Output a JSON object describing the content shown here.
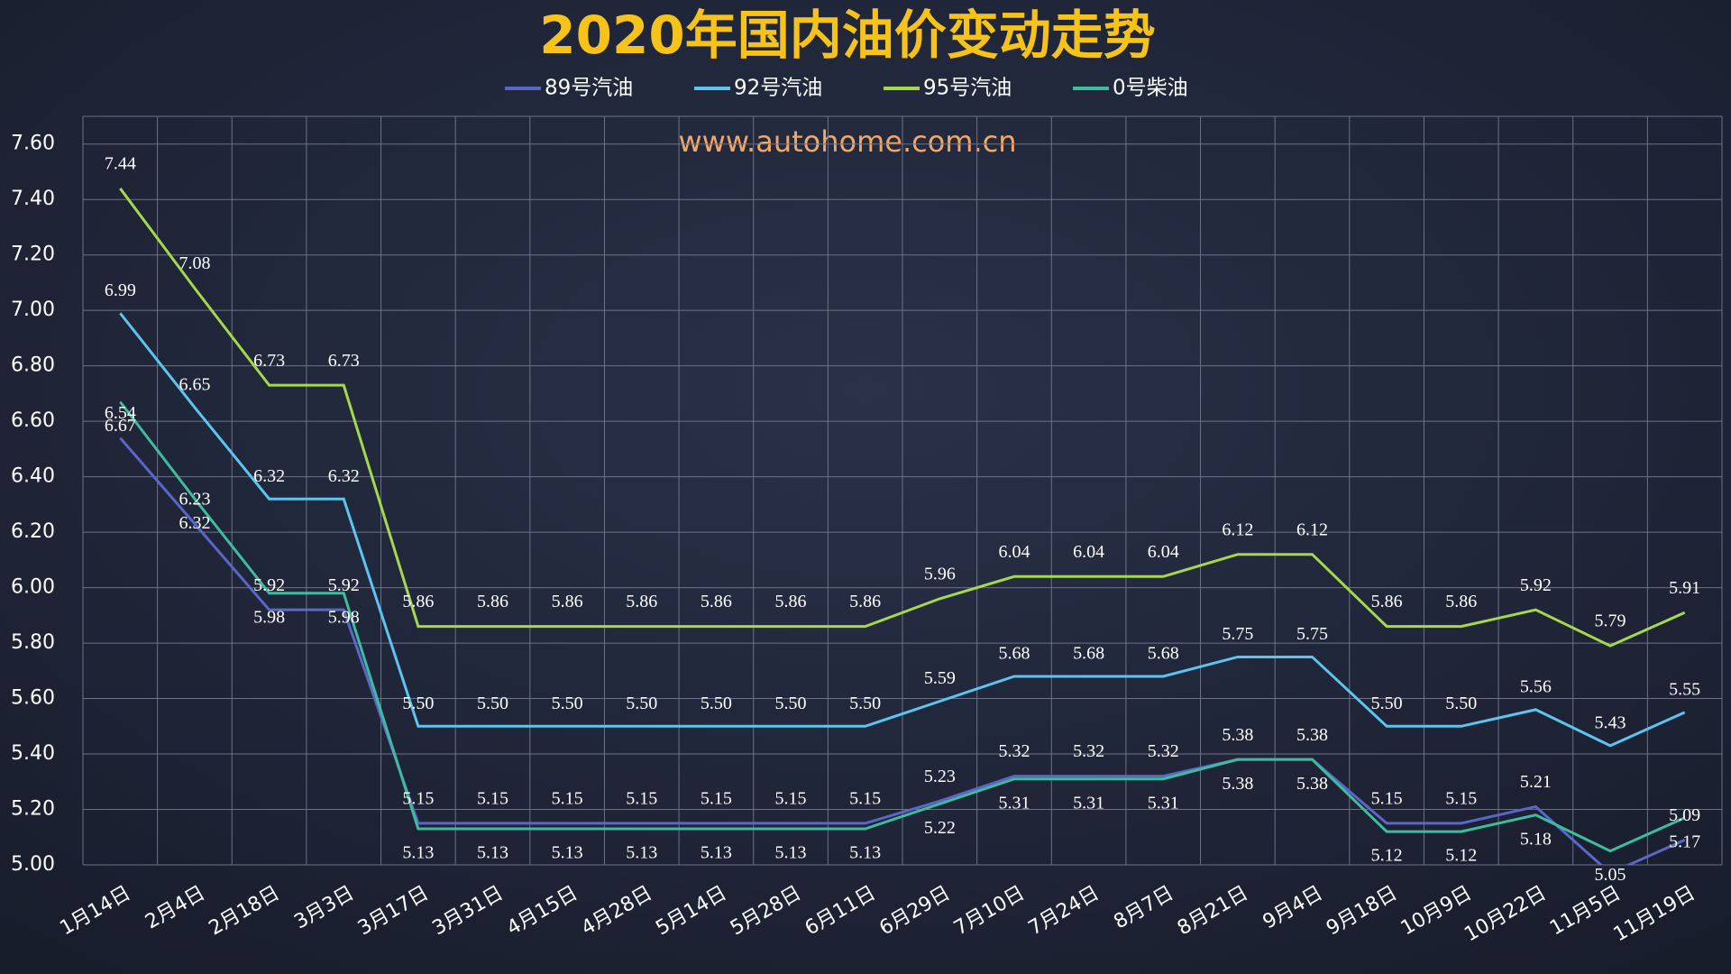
{
  "chart_data": {
    "type": "line",
    "title": "2020年国内油价变动走势",
    "watermark": "www.autohome.com.cn",
    "categories": [
      "1月14日",
      "2月4日",
      "2月18日",
      "3月3日",
      "3月17日",
      "3月31日",
      "4月15日",
      "4月28日",
      "5月14日",
      "5月28日",
      "6月11日",
      "6月29日",
      "7月10日",
      "7月24日",
      "8月7日",
      "8月21日",
      "9月4日",
      "9月18日",
      "10月9日",
      "10月22日",
      "11月5日",
      "11月19日"
    ],
    "ylim": [
      5.0,
      7.7
    ],
    "yticks": [
      {
        "value": 5.0,
        "label": "5.00"
      },
      {
        "value": 5.2,
        "label": "5.20"
      },
      {
        "value": 5.4,
        "label": "5.40"
      },
      {
        "value": 5.6,
        "label": "5.60"
      },
      {
        "value": 5.8,
        "label": "5.80"
      },
      {
        "value": 6.0,
        "label": "6.00"
      },
      {
        "value": 6.2,
        "label": "6.20"
      },
      {
        "value": 6.4,
        "label": "6.40"
      },
      {
        "value": 6.6,
        "label": "6.60"
      },
      {
        "value": 6.8,
        "label": "6.80"
      },
      {
        "value": 7.0,
        "label": "7.00"
      },
      {
        "value": 7.2,
        "label": "7.20"
      },
      {
        "value": 7.4,
        "label": "7.40"
      },
      {
        "value": 7.6,
        "label": "7.60"
      }
    ],
    "grid": true,
    "series": [
      {
        "name": "89号汽油",
        "color": "#5a66c8",
        "values": [
          6.54,
          6.23,
          5.92,
          5.92,
          5.15,
          5.15,
          5.15,
          5.15,
          5.15,
          5.15,
          5.15,
          5.23,
          5.32,
          5.32,
          5.32,
          5.38,
          5.38,
          5.15,
          5.15,
          5.21,
          4.97,
          5.09
        ],
        "value_labels": [
          "6.54",
          "6.23",
          "5.92",
          "5.92",
          "5.15",
          "5.15",
          "5.15",
          "5.15",
          "5.15",
          "5.15",
          "5.15",
          "5.23",
          "5.32",
          "5.32",
          "5.32",
          "5.38",
          "5.38",
          "5.15",
          "5.15",
          "5.21",
          null,
          "5.09"
        ]
      },
      {
        "name": "92号汽油",
        "color": "#5cc4ee",
        "values": [
          6.99,
          6.65,
          6.32,
          6.32,
          5.5,
          5.5,
          5.5,
          5.5,
          5.5,
          5.5,
          5.5,
          5.59,
          5.68,
          5.68,
          5.68,
          5.75,
          5.75,
          5.5,
          5.5,
          5.56,
          5.43,
          5.55
        ],
        "value_labels": [
          "6.99",
          "6.65",
          "6.32",
          "6.32",
          "5.50",
          "5.50",
          "5.50",
          "5.50",
          "5.50",
          "5.50",
          "5.50",
          "5.59",
          "5.68",
          "5.68",
          "5.68",
          "5.75",
          "5.75",
          "5.50",
          "5.50",
          "5.56",
          "5.43",
          "5.55"
        ]
      },
      {
        "name": "95号汽油",
        "color": "#a6d84c",
        "values": [
          7.44,
          7.08,
          6.73,
          6.73,
          5.86,
          5.86,
          5.86,
          5.86,
          5.86,
          5.86,
          5.86,
          5.96,
          6.04,
          6.04,
          6.04,
          6.12,
          6.12,
          5.86,
          5.86,
          5.92,
          5.79,
          5.91
        ],
        "value_labels": [
          "7.44",
          "7.08",
          "6.73",
          "6.73",
          "5.86",
          "5.86",
          "5.86",
          "5.86",
          "5.86",
          "5.86",
          "5.86",
          "5.96",
          "6.04",
          "6.04",
          "6.04",
          "6.12",
          "6.12",
          "5.86",
          "5.86",
          "5.92",
          "5.79",
          "5.91"
        ]
      },
      {
        "name": "0号柴油",
        "color": "#3fbc9e",
        "values": [
          6.67,
          6.32,
          5.98,
          5.98,
          5.13,
          5.13,
          5.13,
          5.13,
          5.13,
          5.13,
          5.13,
          5.22,
          5.31,
          5.31,
          5.31,
          5.38,
          5.38,
          5.12,
          5.12,
          5.18,
          5.05,
          5.17
        ],
        "value_labels": [
          "6.67",
          "6.32",
          "5.98",
          "5.98",
          "5.13",
          "5.13",
          "5.13",
          "5.13",
          "5.13",
          "5.13",
          "5.13",
          "5.22",
          "5.31",
          "5.31",
          "5.31",
          "5.38",
          "5.38",
          "5.12",
          "5.12",
          "5.18",
          "5.05",
          "5.17"
        ]
      }
    ]
  }
}
